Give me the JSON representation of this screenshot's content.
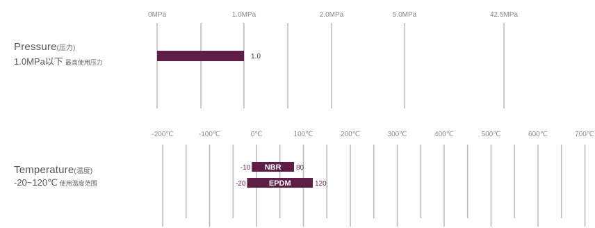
{
  "pressure": {
    "title": "Pressure",
    "title_paren": "(压力)",
    "subtitle": "1.0MPa以下",
    "subtitle_small": "最高使用压力"
  },
  "temperature": {
    "title": "Temperature",
    "title_paren": "(温度)",
    "subtitle": "-20~120℃",
    "subtitle_small": "使用温度范围"
  },
  "colors": {
    "bar": "#5e1e45",
    "grid": "#bdbdbd",
    "tick": "#888888"
  },
  "chart_data": [
    {
      "type": "bar",
      "orientation": "horizontal",
      "title": "",
      "x_ticks": [
        "0MPa",
        "1.0MPa",
        "2.0MPa",
        "5.0MPa",
        "42.5MPa"
      ],
      "x_tick_values": [
        0,
        1.0,
        2.0,
        5.0,
        42.5
      ],
      "series": [
        {
          "start": 0,
          "end": 1.0,
          "value_label": "1.0"
        }
      ]
    },
    {
      "type": "bar",
      "orientation": "horizontal",
      "title": "",
      "x_ticks": [
        "-200℃",
        "-100℃",
        "0℃",
        "100℃",
        "200℃",
        "300℃",
        "400℃",
        "500℃",
        "600℃",
        "700℃"
      ],
      "x_tick_values": [
        -200,
        -100,
        0,
        100,
        200,
        300,
        400,
        500,
        600,
        700
      ],
      "series": [
        {
          "name": "NBR",
          "start": -10,
          "end": 80,
          "start_label": "-10",
          "end_label": "80"
        },
        {
          "name": "EPDM",
          "start": -20,
          "end": 120,
          "start_label": "-20",
          "end_label": "120"
        }
      ]
    }
  ]
}
